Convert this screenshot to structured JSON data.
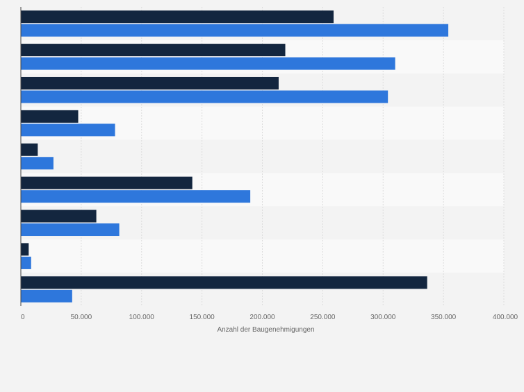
{
  "chart_data": {
    "type": "bar",
    "orientation": "horizontal",
    "grid": true,
    "xlabel": "Anzahl der Baugenehmigungen",
    "ylabel": "",
    "title": "",
    "xlim": [
      0,
      400000
    ],
    "xticks": [
      0,
      50000,
      100000,
      150000,
      200000,
      250000,
      300000,
      350000,
      400000
    ],
    "xtick_labels": [
      "0",
      "50.000",
      "100.000",
      "150.000",
      "200.000",
      "250.000",
      "300.000",
      "350.000",
      "400.000"
    ],
    "categories": [
      "",
      "",
      "",
      "",
      "",
      "",
      "",
      "",
      ""
    ],
    "series": [
      {
        "color": "#13263f",
        "values": [
          259000,
          219000,
          213500,
          47500,
          14000,
          142000,
          62500,
          6500,
          336500
        ]
      },
      {
        "color": "#2e77dc",
        "values": [
          354000,
          310000,
          304000,
          78000,
          27000,
          190000,
          81500,
          8500,
          42500
        ]
      }
    ],
    "colors": {
      "page_background": "#f3f3f3",
      "band_dark": "#f3f3f3",
      "band_light": "#f9f9f9",
      "grid": "#dcdcdc",
      "axis": "#444444",
      "tick_text": "#666666"
    }
  }
}
